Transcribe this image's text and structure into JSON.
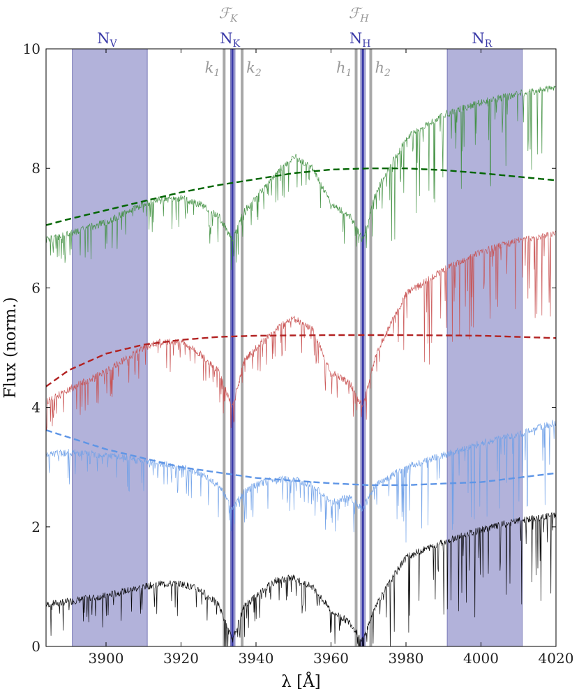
{
  "chart_data": {
    "type": "line",
    "xlabel": "λ [Å]",
    "ylabel": "Flux (norm.)",
    "xlim": [
      3884,
      4020
    ],
    "ylim": [
      0,
      10
    ],
    "x_ticks": [
      3900,
      3920,
      3940,
      3960,
      3980,
      4000,
      4020
    ],
    "y_ticks": [
      0,
      2,
      4,
      6,
      8,
      10
    ],
    "grid": false,
    "colors": {
      "band_fill": "#aaaad6",
      "band_edge": "#6b6bb0",
      "band_label": "#3a3aa8",
      "filter_line": "#999999",
      "core_line": "#3a3aa8"
    },
    "bands": [
      {
        "name": "N_V",
        "label_main": "N",
        "label_sub": "V",
        "range": [
          3891,
          3911
        ]
      },
      {
        "name": "N_K",
        "label_main": "N",
        "label_sub": "K",
        "range": [
          3933.2,
          3934.4
        ]
      },
      {
        "name": "N_H",
        "label_main": "N",
        "label_sub": "H",
        "range": [
          3967.9,
          3969.1
        ]
      },
      {
        "name": "N_R",
        "label_main": "N",
        "label_sub": "R",
        "range": [
          3991,
          4011
        ]
      }
    ],
    "filters": [
      {
        "label_main": "ℱ",
        "label_sub": "K",
        "center": 3933.7
      },
      {
        "label_main": "ℱ",
        "label_sub": "H",
        "center": 3968.5
      }
    ],
    "reference_lines": [
      {
        "label_main": "k",
        "label_sub": "1",
        "x": 3931.5
      },
      {
        "label_main": "k",
        "label_sub": "2",
        "x": 3936.3
      },
      {
        "label_main": "h",
        "label_sub": "1",
        "x": 3966.7
      },
      {
        "label_main": "h",
        "label_sub": "2",
        "x": 3970.6
      }
    ],
    "series": [
      {
        "style": "spectrum",
        "color": "#000000",
        "x": [
          3884,
          3890,
          3900,
          3910,
          3915,
          3920,
          3925,
          3930,
          3933.7,
          3937,
          3940,
          3945,
          3950,
          3955,
          3960,
          3965,
          3968.5,
          3972,
          3980,
          3990,
          4000,
          4010,
          4020
        ],
        "values": [
          0.7,
          0.75,
          0.85,
          1.0,
          1.05,
          1.05,
          0.95,
          0.7,
          0.1,
          0.7,
          0.85,
          1.1,
          1.15,
          1.0,
          0.6,
          0.4,
          0.1,
          0.7,
          1.5,
          1.75,
          1.95,
          2.1,
          2.2
        ]
      },
      {
        "style": "spectrum",
        "color": "#6fa0e8",
        "x": [
          3884,
          3890,
          3900,
          3910,
          3920,
          3925,
          3930,
          3933.7,
          3937,
          3940,
          3945,
          3950,
          3955,
          3960,
          3965,
          3968.5,
          3972,
          3980,
          3990,
          4000,
          4010,
          4020
        ],
        "values": [
          3.2,
          3.25,
          3.2,
          3.1,
          3.0,
          2.9,
          2.7,
          2.3,
          2.6,
          2.7,
          2.8,
          2.8,
          2.7,
          2.4,
          2.5,
          2.3,
          2.7,
          3.0,
          3.2,
          3.4,
          3.55,
          3.75
        ]
      },
      {
        "style": "continuum",
        "color": "#5e95e6",
        "x": [
          3884,
          3900,
          3920,
          3940,
          3960,
          3970,
          3980,
          4000,
          4020
        ],
        "values": [
          3.62,
          3.3,
          3.0,
          2.82,
          2.73,
          2.7,
          2.7,
          2.75,
          2.9
        ]
      },
      {
        "style": "spectrum",
        "color": "#c85050",
        "x": [
          3884,
          3890,
          3900,
          3910,
          3915,
          3920,
          3925,
          3930,
          3933.7,
          3937,
          3940,
          3945,
          3950,
          3955,
          3960,
          3965,
          3968.5,
          3972,
          3980,
          3990,
          4000,
          4010,
          4020
        ],
        "values": [
          4.1,
          4.3,
          4.6,
          5.0,
          5.1,
          5.1,
          4.9,
          4.6,
          4.0,
          4.8,
          5.0,
          5.3,
          5.5,
          5.3,
          4.6,
          4.4,
          4.0,
          4.9,
          5.9,
          6.3,
          6.6,
          6.8,
          6.9
        ]
      },
      {
        "style": "continuum",
        "color": "#b22222",
        "x": [
          3884,
          3890,
          3900,
          3910,
          3920,
          3930,
          3940,
          3960,
          3980,
          4000,
          4020
        ],
        "values": [
          4.35,
          4.62,
          4.9,
          5.05,
          5.13,
          5.18,
          5.2,
          5.21,
          5.21,
          5.2,
          5.16
        ]
      },
      {
        "style": "spectrum",
        "color": "#3f8f3f",
        "x": [
          3884,
          3890,
          3900,
          3910,
          3915,
          3920,
          3925,
          3930,
          3933.7,
          3937,
          3940,
          3945,
          3950,
          3955,
          3960,
          3965,
          3968.5,
          3972,
          3980,
          3990,
          4000,
          4010,
          4020
        ],
        "values": [
          6.8,
          6.9,
          7.1,
          7.4,
          7.5,
          7.5,
          7.4,
          7.2,
          6.8,
          7.3,
          7.5,
          7.9,
          8.2,
          8.0,
          7.4,
          7.2,
          6.8,
          7.6,
          8.5,
          8.9,
          9.1,
          9.25,
          9.35
        ]
      },
      {
        "style": "continuum",
        "color": "#006400",
        "x": [
          3884,
          3890,
          3900,
          3910,
          3920,
          3930,
          3940,
          3950,
          3960,
          3970,
          3980,
          3990,
          4000,
          4010,
          4020
        ],
        "values": [
          7.05,
          7.15,
          7.3,
          7.45,
          7.6,
          7.72,
          7.82,
          7.92,
          7.98,
          8.0,
          8.0,
          7.97,
          7.92,
          7.86,
          7.8
        ]
      }
    ]
  }
}
